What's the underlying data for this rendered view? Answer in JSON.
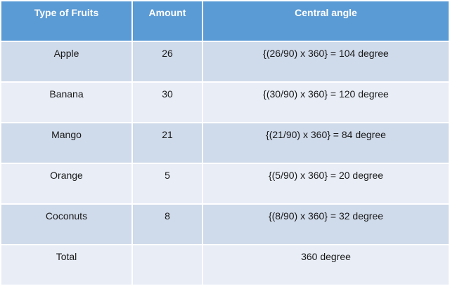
{
  "table": {
    "header": [
      "Type of Fruits",
      "Amount",
      "Central angle"
    ],
    "rows": [
      [
        "Apple",
        26,
        "{(26/90) x 360} = 104 degree"
      ],
      [
        "Banana",
        30,
        "{(30/90) x 360} = 120 degree"
      ],
      [
        "Mango",
        21,
        "{(21/90) x 360} = 84 degree"
      ],
      [
        "Orange",
        5,
        "{(5/90) x 360} = 20 degree"
      ],
      [
        "Coconuts",
        8,
        "{(8/90) x 360} = 32 degree"
      ]
    ],
    "total": {
      "label": "Total",
      "central_angle": "360 degree"
    }
  }
}
